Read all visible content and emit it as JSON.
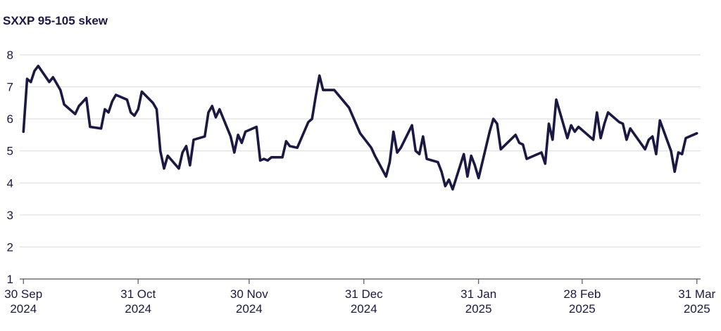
{
  "chart_data": {
    "type": "line",
    "title": "SXXP 95-105 skew",
    "xlabel": "",
    "ylabel": "",
    "ylim": [
      1,
      8
    ],
    "y_ticks": [
      1,
      2,
      3,
      4,
      5,
      6,
      7,
      8
    ],
    "grid": true,
    "colors": {
      "series": "#1b1842",
      "grid": "#d9d9d9"
    },
    "x_ticks": [
      {
        "date": "2024-09-30",
        "line1": "30 Sep",
        "line2": "2024"
      },
      {
        "date": "2024-10-31",
        "line1": "31 Oct",
        "line2": "2024"
      },
      {
        "date": "2024-11-30",
        "line1": "30 Nov",
        "line2": "2024"
      },
      {
        "date": "2024-12-31",
        "line1": "31 Dec",
        "line2": "2024"
      },
      {
        "date": "2025-01-31",
        "line1": "31 Jan",
        "line2": "2025"
      },
      {
        "date": "2025-02-28",
        "line1": "28 Feb",
        "line2": "2025"
      },
      {
        "date": "2025-03-31",
        "line1": "31 Mar",
        "line2": "2025"
      }
    ],
    "series": [
      {
        "points": [
          [
            "2024-09-30",
            5.6
          ],
          [
            "2024-10-01",
            7.25
          ],
          [
            "2024-10-02",
            7.15
          ],
          [
            "2024-10-03",
            7.5
          ],
          [
            "2024-10-04",
            7.65
          ],
          [
            "2024-10-07",
            7.15
          ],
          [
            "2024-10-08",
            7.3
          ],
          [
            "2024-10-10",
            6.9
          ],
          [
            "2024-10-11",
            6.45
          ],
          [
            "2024-10-14",
            6.15
          ],
          [
            "2024-10-15",
            6.4
          ],
          [
            "2024-10-17",
            6.65
          ],
          [
            "2024-10-18",
            5.75
          ],
          [
            "2024-10-21",
            5.7
          ],
          [
            "2024-10-22",
            6.3
          ],
          [
            "2024-10-23",
            6.2
          ],
          [
            "2024-10-24",
            6.55
          ],
          [
            "2024-10-25",
            6.75
          ],
          [
            "2024-10-28",
            6.6
          ],
          [
            "2024-10-29",
            6.2
          ],
          [
            "2024-10-30",
            6.1
          ],
          [
            "2024-10-31",
            6.3
          ],
          [
            "2024-11-01",
            6.85
          ],
          [
            "2024-11-04",
            6.5
          ],
          [
            "2024-11-05",
            6.3
          ],
          [
            "2024-11-06",
            5.0
          ],
          [
            "2024-11-07",
            4.45
          ],
          [
            "2024-11-08",
            4.85
          ],
          [
            "2024-11-11",
            4.45
          ],
          [
            "2024-11-12",
            4.95
          ],
          [
            "2024-11-13",
            5.15
          ],
          [
            "2024-11-14",
            4.55
          ],
          [
            "2024-11-15",
            5.35
          ],
          [
            "2024-11-18",
            5.45
          ],
          [
            "2024-11-19",
            6.2
          ],
          [
            "2024-11-20",
            6.4
          ],
          [
            "2024-11-21",
            6.05
          ],
          [
            "2024-11-22",
            6.3
          ],
          [
            "2024-11-25",
            5.45
          ],
          [
            "2024-11-26",
            4.95
          ],
          [
            "2024-11-27",
            5.5
          ],
          [
            "2024-11-28",
            5.25
          ],
          [
            "2024-11-29",
            5.6
          ],
          [
            "2024-12-02",
            5.75
          ],
          [
            "2024-12-03",
            4.7
          ],
          [
            "2024-12-04",
            4.75
          ],
          [
            "2024-12-05",
            4.7
          ],
          [
            "2024-12-06",
            4.8
          ],
          [
            "2024-12-09",
            4.8
          ],
          [
            "2024-12-10",
            5.3
          ],
          [
            "2024-12-11",
            5.15
          ],
          [
            "2024-12-13",
            5.1
          ],
          [
            "2024-12-16",
            5.9
          ],
          [
            "2024-12-17",
            6.0
          ],
          [
            "2024-12-18",
            6.7
          ],
          [
            "2024-12-19",
            7.35
          ],
          [
            "2024-12-20",
            6.9
          ],
          [
            "2024-12-23",
            6.9
          ],
          [
            "2024-12-27",
            6.35
          ],
          [
            "2024-12-30",
            5.55
          ],
          [
            "2025-01-02",
            5.1
          ],
          [
            "2025-01-03",
            4.85
          ],
          [
            "2025-01-06",
            4.2
          ],
          [
            "2025-01-07",
            4.65
          ],
          [
            "2025-01-08",
            5.6
          ],
          [
            "2025-01-09",
            4.95
          ],
          [
            "2025-01-10",
            5.1
          ],
          [
            "2025-01-13",
            5.8
          ],
          [
            "2025-01-14",
            5.0
          ],
          [
            "2025-01-15",
            4.9
          ],
          [
            "2025-01-16",
            5.45
          ],
          [
            "2025-01-17",
            4.75
          ],
          [
            "2025-01-20",
            4.65
          ],
          [
            "2025-01-21",
            4.35
          ],
          [
            "2025-01-22",
            3.9
          ],
          [
            "2025-01-23",
            4.1
          ],
          [
            "2025-01-24",
            3.8
          ],
          [
            "2025-01-27",
            4.9
          ],
          [
            "2025-01-28",
            4.2
          ],
          [
            "2025-01-29",
            4.85
          ],
          [
            "2025-01-30",
            4.55
          ],
          [
            "2025-01-31",
            4.15
          ],
          [
            "2025-02-03",
            5.6
          ],
          [
            "2025-02-04",
            6.0
          ],
          [
            "2025-02-05",
            5.85
          ],
          [
            "2025-02-06",
            5.05
          ],
          [
            "2025-02-10",
            5.5
          ],
          [
            "2025-02-11",
            5.25
          ],
          [
            "2025-02-12",
            5.2
          ],
          [
            "2025-02-13",
            4.75
          ],
          [
            "2025-02-17",
            4.95
          ],
          [
            "2025-02-18",
            4.6
          ],
          [
            "2025-02-19",
            5.85
          ],
          [
            "2025-02-20",
            5.35
          ],
          [
            "2025-02-21",
            6.6
          ],
          [
            "2025-02-24",
            5.4
          ],
          [
            "2025-02-25",
            5.8
          ],
          [
            "2025-02-26",
            5.6
          ],
          [
            "2025-02-27",
            5.75
          ],
          [
            "2025-03-03",
            5.35
          ],
          [
            "2025-03-04",
            6.2
          ],
          [
            "2025-03-05",
            5.4
          ],
          [
            "2025-03-06",
            5.85
          ],
          [
            "2025-03-07",
            6.2
          ],
          [
            "2025-03-10",
            5.9
          ],
          [
            "2025-03-11",
            5.85
          ],
          [
            "2025-03-12",
            5.35
          ],
          [
            "2025-03-13",
            5.7
          ],
          [
            "2025-03-17",
            5.05
          ],
          [
            "2025-03-18",
            5.35
          ],
          [
            "2025-03-19",
            5.45
          ],
          [
            "2025-03-20",
            4.9
          ],
          [
            "2025-03-21",
            5.95
          ],
          [
            "2025-03-24",
            5.0
          ],
          [
            "2025-03-25",
            4.35
          ],
          [
            "2025-03-26",
            4.95
          ],
          [
            "2025-03-27",
            4.9
          ],
          [
            "2025-03-28",
            5.4
          ],
          [
            "2025-03-31",
            5.55
          ]
        ]
      }
    ]
  }
}
